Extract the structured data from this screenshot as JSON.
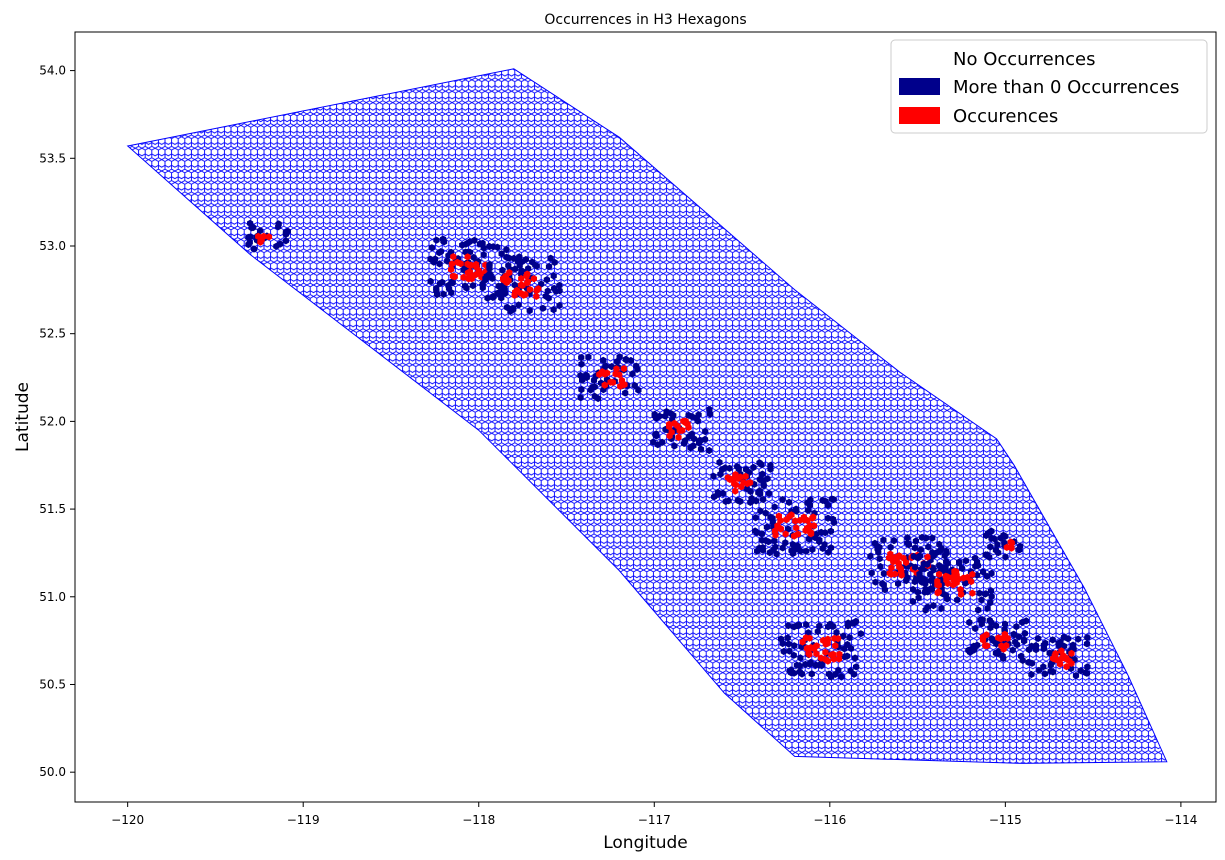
{
  "chart_data": {
    "type": "map",
    "title": "Occurrences in H3 Hexagons",
    "xlabel": "Longitude",
    "ylabel": "Latitude",
    "xlim": [
      -120.3,
      -113.8
    ],
    "ylim": [
      49.83,
      54.22
    ],
    "xticks": [
      -120,
      -119,
      -118,
      -117,
      -116,
      -115,
      -114
    ],
    "yticks": [
      50.0,
      50.5,
      51.0,
      51.5,
      52.0,
      52.5,
      53.0,
      53.5,
      54.0
    ],
    "grid": false,
    "legend": {
      "placement": "top-right",
      "entries": [
        {
          "label": "No Occurrences",
          "color": "none"
        },
        {
          "label": "More than 0 Occurrences",
          "color": "#00008b"
        },
        {
          "label": "Occurences",
          "color": "#ff0000"
        }
      ]
    },
    "region_boundary": [
      [
        -120.0,
        53.57
      ],
      [
        -117.8,
        54.01
      ],
      [
        -117.2,
        53.62
      ],
      [
        -116.2,
        52.75
      ],
      [
        -115.6,
        52.28
      ],
      [
        -115.05,
        51.9
      ],
      [
        -114.95,
        51.75
      ],
      [
        -114.55,
        51.05
      ],
      [
        -114.3,
        50.55
      ],
      [
        -114.08,
        50.06
      ],
      [
        -114.9,
        50.05
      ],
      [
        -116.2,
        50.09
      ],
      [
        -116.6,
        50.45
      ],
      [
        -117.2,
        51.15
      ],
      [
        -118.0,
        51.95
      ],
      [
        -119.3,
        52.95
      ]
    ],
    "hexagon_outline_color": "#0000ff",
    "occurrence_clusters": [
      {
        "lon": -118.05,
        "lat": 52.88,
        "intensity": "high"
      },
      {
        "lon": -117.75,
        "lat": 52.78,
        "intensity": "high"
      },
      {
        "lon": -117.25,
        "lat": 52.25,
        "intensity": "medium"
      },
      {
        "lon": -116.85,
        "lat": 51.95,
        "intensity": "medium"
      },
      {
        "lon": -116.5,
        "lat": 51.65,
        "intensity": "medium"
      },
      {
        "lon": -116.2,
        "lat": 51.4,
        "intensity": "high"
      },
      {
        "lon": -115.55,
        "lat": 51.18,
        "intensity": "high"
      },
      {
        "lon": -115.3,
        "lat": 51.08,
        "intensity": "high"
      },
      {
        "lon": -115.05,
        "lat": 50.75,
        "intensity": "medium"
      },
      {
        "lon": -116.05,
        "lat": 50.7,
        "intensity": "high"
      },
      {
        "lon": -115.0,
        "lat": 51.3,
        "intensity": "low"
      },
      {
        "lon": -119.2,
        "lat": 53.05,
        "intensity": "low"
      },
      {
        "lon": -114.7,
        "lat": 50.65,
        "intensity": "medium"
      }
    ]
  }
}
